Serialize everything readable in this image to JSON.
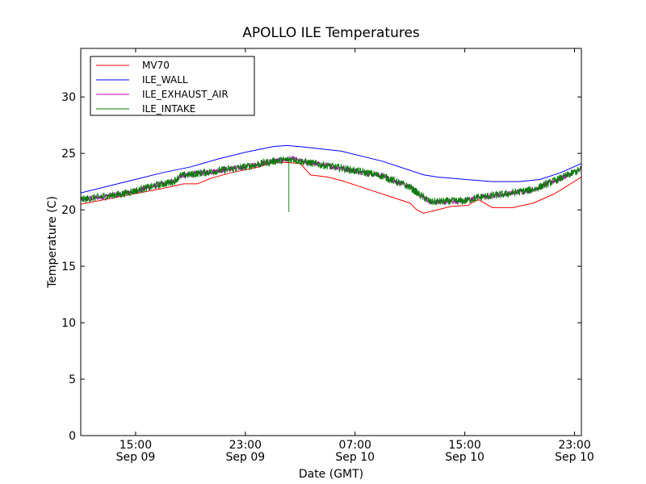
{
  "chart_data": {
    "type": "line",
    "title": "APOLLO ILE Temperatures",
    "xlabel": "Date (GMT)",
    "ylabel": "Temperature (C)",
    "x_unit": "hours",
    "xlim": [
      "2011-09-09 11:00",
      "2011-09-10 23:30"
    ],
    "ylim": [
      0,
      34.3
    ],
    "legend_position": "top-left",
    "grid": false,
    "x_ticks": [
      {
        "x": "2011-09-09 15:00",
        "time": "15:00",
        "date": "Sep 09"
      },
      {
        "x": "2011-09-09 23:00",
        "time": "23:00",
        "date": "Sep 09"
      },
      {
        "x": "2011-09-10 07:00",
        "time": "07:00",
        "date": "Sep 10"
      },
      {
        "x": "2011-09-10 15:00",
        "time": "15:00",
        "date": "Sep 10"
      },
      {
        "x": "2011-09-10 23:00",
        "time": "23:00",
        "date": "Sep 10"
      }
    ],
    "y_ticks": [
      0,
      5,
      10,
      15,
      20,
      25,
      30
    ],
    "series": [
      {
        "name": "MV70",
        "color": "#ff0000",
        "noise": 0,
        "points": [
          [
            "2011-09-09 11:00",
            20.5
          ],
          [
            "2011-09-09 14:00",
            21.2
          ],
          [
            "2011-09-09 17:00",
            21.9
          ],
          [
            "2011-09-09 18:30",
            22.3
          ],
          [
            "2011-09-09 19:00",
            22.3
          ],
          [
            "2011-09-09 19:30",
            22.3
          ],
          [
            "2011-09-09 20:30",
            22.8
          ],
          [
            "2011-09-09 22:00",
            23.3
          ],
          [
            "2011-09-10 00:00",
            23.8
          ],
          [
            "2011-09-10 01:00",
            24.2
          ],
          [
            "2011-09-10 02:00",
            24.2
          ],
          [
            "2011-09-10 03:00",
            24.1
          ],
          [
            "2011-09-10 03:45",
            23.1
          ],
          [
            "2011-09-10 05:00",
            22.9
          ],
          [
            "2011-09-10 06:00",
            22.6
          ],
          [
            "2011-09-10 08:00",
            21.8
          ],
          [
            "2011-09-10 10:00",
            21.0
          ],
          [
            "2011-09-10 11:00",
            20.6
          ],
          [
            "2011-09-10 11:30",
            20.0
          ],
          [
            "2011-09-10 12:00",
            19.7
          ],
          [
            "2011-09-10 13:00",
            20.0
          ],
          [
            "2011-09-10 14:00",
            20.3
          ],
          [
            "2011-09-10 15:15",
            20.4
          ],
          [
            "2011-09-10 15:30",
            20.6
          ],
          [
            "2011-09-10 16:00",
            20.9
          ],
          [
            "2011-09-10 17:00",
            20.2
          ],
          [
            "2011-09-10 18:30",
            20.2
          ],
          [
            "2011-09-10 20:00",
            20.6
          ],
          [
            "2011-09-10 21:30",
            21.4
          ],
          [
            "2011-09-10 23:30",
            22.9
          ]
        ]
      },
      {
        "name": "ILE_WALL",
        "color": "#0000ff",
        "noise": 0,
        "points": [
          [
            "2011-09-09 11:00",
            21.5
          ],
          [
            "2011-09-09 13:00",
            22.1
          ],
          [
            "2011-09-09 15:00",
            22.7
          ],
          [
            "2011-09-09 17:00",
            23.3
          ],
          [
            "2011-09-09 19:00",
            23.8
          ],
          [
            "2011-09-09 21:00",
            24.5
          ],
          [
            "2011-09-09 23:00",
            25.1
          ],
          [
            "2011-09-10 01:00",
            25.6
          ],
          [
            "2011-09-10 02:00",
            25.7
          ],
          [
            "2011-09-10 03:00",
            25.6
          ],
          [
            "2011-09-10 06:00",
            25.2
          ],
          [
            "2011-09-10 09:00",
            24.3
          ],
          [
            "2011-09-10 11:00",
            23.5
          ],
          [
            "2011-09-10 12:00",
            23.1
          ],
          [
            "2011-09-10 13:00",
            22.9
          ],
          [
            "2011-09-10 15:00",
            22.7
          ],
          [
            "2011-09-10 17:00",
            22.5
          ],
          [
            "2011-09-10 19:00",
            22.5
          ],
          [
            "2011-09-10 20:30",
            22.7
          ],
          [
            "2011-09-10 22:00",
            23.3
          ],
          [
            "2011-09-10 23:30",
            24.1
          ]
        ]
      },
      {
        "name": "ILE_EXHAUST_AIR",
        "color": "#bf00bf",
        "noise": 0.25,
        "points": [
          [
            "2011-09-09 11:00",
            20.9
          ],
          [
            "2011-09-09 14:00",
            21.4
          ],
          [
            "2011-09-09 17:00",
            22.3
          ],
          [
            "2011-09-09 17:45",
            22.5
          ],
          [
            "2011-09-09 18:15",
            23.0
          ],
          [
            "2011-09-09 20:00",
            23.3
          ],
          [
            "2011-09-09 23:00",
            23.8
          ],
          [
            "2011-09-10 01:00",
            24.3
          ],
          [
            "2011-09-10 02:30",
            24.5
          ],
          [
            "2011-09-10 03:00",
            24.3
          ],
          [
            "2011-09-10 06:00",
            23.7
          ],
          [
            "2011-09-10 09:00",
            23.0
          ],
          [
            "2011-09-10 11:00",
            22.0
          ],
          [
            "2011-09-10 11:45",
            21.3
          ],
          [
            "2011-09-10 12:30",
            20.7
          ],
          [
            "2011-09-10 15:00",
            20.8
          ],
          [
            "2011-09-10 16:00",
            21.1
          ],
          [
            "2011-09-10 18:00",
            21.4
          ],
          [
            "2011-09-10 20:00",
            21.8
          ],
          [
            "2011-09-10 22:00",
            22.8
          ],
          [
            "2011-09-10 23:30",
            23.6
          ]
        ]
      },
      {
        "name": "ILE_INTAKE",
        "color": "#008000",
        "noise": 0.35,
        "spike": {
          "x": "2011-09-10 02:10",
          "value": 19.8
        },
        "points": [
          [
            "2011-09-09 11:00",
            20.9
          ],
          [
            "2011-09-09 14:00",
            21.4
          ],
          [
            "2011-09-09 17:00",
            22.3
          ],
          [
            "2011-09-09 17:45",
            22.5
          ],
          [
            "2011-09-09 18:15",
            23.0
          ],
          [
            "2011-09-09 20:00",
            23.3
          ],
          [
            "2011-09-09 23:00",
            23.8
          ],
          [
            "2011-09-10 01:00",
            24.3
          ],
          [
            "2011-09-10 02:30",
            24.5
          ],
          [
            "2011-09-10 03:00",
            24.3
          ],
          [
            "2011-09-10 06:00",
            23.7
          ],
          [
            "2011-09-10 09:00",
            23.0
          ],
          [
            "2011-09-10 11:00",
            22.0
          ],
          [
            "2011-09-10 11:45",
            21.3
          ],
          [
            "2011-09-10 12:30",
            20.7
          ],
          [
            "2011-09-10 15:00",
            20.8
          ],
          [
            "2011-09-10 16:00",
            21.1
          ],
          [
            "2011-09-10 18:00",
            21.4
          ],
          [
            "2011-09-10 20:00",
            21.8
          ],
          [
            "2011-09-10 22:00",
            22.8
          ],
          [
            "2011-09-10 23:30",
            23.6
          ]
        ]
      }
    ]
  }
}
